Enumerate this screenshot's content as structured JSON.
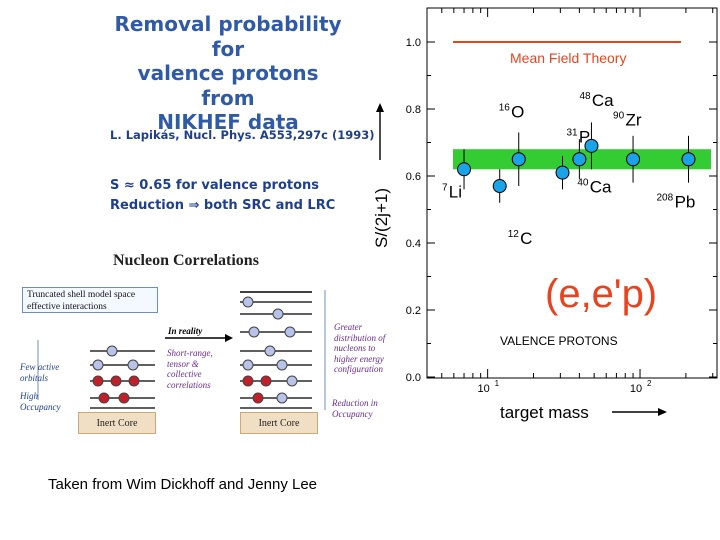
{
  "slide": {
    "title_lines": [
      "Removal probability for",
      "valence protons",
      "from",
      "NIKHEF data"
    ],
    "reference": "L. Lapikás, Nucl. Phys. A553,297c (1993)",
    "note_line1": "S ≈ 0.65 for valence protons",
    "note_line2": "Reduction ⇒ both SRC and LRC",
    "caption": "Taken from Wim Dickhoff and Jenny Lee"
  },
  "correlations_figure": {
    "title": "Nucleon Correlations",
    "box_label": "Truncated shell model space effective interactions",
    "in_reality": "In reality",
    "few_active": "Few active orbitals",
    "high_occupancy": "High Occupancy",
    "short_range": "Short-range, tensor & collective correlations",
    "greater_distribution": "Greater distribution of nucleons to higher energy configuration",
    "reduction": "Reduction in Occupancy",
    "inert_core": "Inert Core"
  },
  "chart_data": {
    "type": "scatter",
    "title": "",
    "xlabel": "target mass",
    "ylabel": "S/(2j+1)",
    "x_scale": "log",
    "xlim": [
      4,
      320
    ],
    "ylim": [
      0.0,
      1.05
    ],
    "y_ticks": [
      "0.0",
      "0.2",
      "0.4",
      "0.6",
      "0.8",
      "1.0"
    ],
    "x_ticks": [
      {
        "base": "10",
        "exp": "1",
        "value": 10
      },
      {
        "base": "10",
        "exp": "2",
        "value": 100
      }
    ],
    "mean_field_label": "Mean Field Theory",
    "mean_field_value": 1.0,
    "band": [
      0.62,
      0.68
    ],
    "band_color": "#33cc33",
    "line_color": "#e8431f",
    "point_color": "#1aa3e8",
    "reaction_label": "(e,e'p)",
    "valence_label": "VALENCE PROTONS",
    "points": [
      {
        "nucleus": "Li",
        "mass_number": "7",
        "x": 7,
        "y": 0.62,
        "err": 0.06
      },
      {
        "nucleus": "C",
        "mass_number": "12",
        "x": 12,
        "y": 0.57,
        "err": 0.05
      },
      {
        "nucleus": "O",
        "mass_number": "16",
        "x": 16,
        "y": 0.65,
        "err": 0.08
      },
      {
        "nucleus": "P",
        "mass_number": "31",
        "x": 31,
        "y": 0.61,
        "err": 0.05
      },
      {
        "nucleus": "Ca",
        "mass_number": "40",
        "x": 40,
        "y": 0.65,
        "err": 0.06
      },
      {
        "nucleus": "Ca",
        "mass_number": "48",
        "x": 48,
        "y": 0.69,
        "err": 0.07
      },
      {
        "nucleus": "Zr",
        "mass_number": "90",
        "x": 90,
        "y": 0.65,
        "err": 0.07
      },
      {
        "nucleus": "Pb",
        "mass_number": "208",
        "x": 208,
        "y": 0.65,
        "err": 0.07
      }
    ]
  }
}
